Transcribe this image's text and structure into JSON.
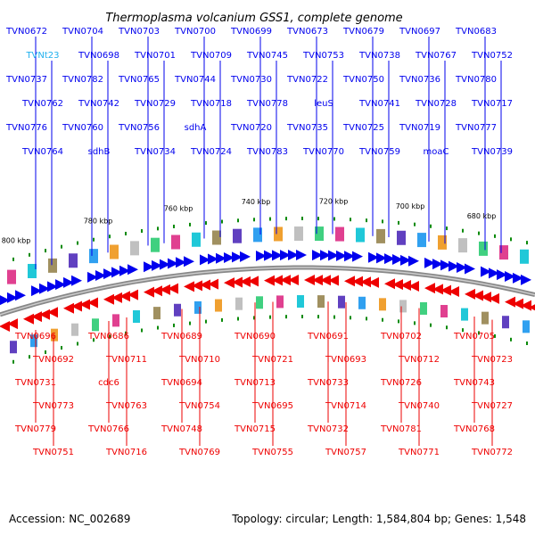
{
  "title": "Thermoplasma volcanium GSS1, complete genome",
  "accession": "Accession: NC_002689",
  "summary": "Topology: circular; Length: 1,584,804 bp; Genes: 1,548",
  "colors": {
    "forward": "#0000ee",
    "reverse": "#ee0000",
    "highlight": "#20b0ee",
    "backbone": "#888888",
    "tick": "#0a8a0a"
  },
  "scale_labels": [
    "680 kbp",
    "700 kbp",
    "720 kbp",
    "740 kbp",
    "760 kbp",
    "780 kbp",
    "800 kbp"
  ],
  "forward_labels": [
    "TVN0672",
    "TVN0704",
    "TVN0703",
    "TVN0700",
    "TVN0699",
    "TVN0673",
    "TVN0679",
    "TVN0697",
    "TVN0683",
    "TVNt23",
    "TVN0698",
    "TVN0701",
    "TVN0709",
    "TVN0745",
    "TVN0753",
    "TVN0738",
    "TVN0767",
    "TVN0752",
    "TVN0737",
    "TVN0782",
    "TVN0765",
    "TVN0744",
    "TVN0730",
    "TVN0722",
    "TVN0750",
    "TVN0736",
    "TVN0780",
    "TVN0762",
    "TVN0742",
    "TVN0729",
    "TVN0718",
    "TVN0778",
    "leuS",
    "TVN0741",
    "TVN0728",
    "TVN0717",
    "TVN0776",
    "TVN0760",
    "TVN0756",
    "sdhA",
    "TVN0720",
    "TVN0735",
    "TVN0725",
    "TVN0719",
    "TVN0777",
    "TVN0764",
    "sdhB",
    "TVN0734",
    "TVN0724",
    "TVN0783",
    "TVN0770",
    "TVN0759",
    "moaC",
    "TVN0739"
  ],
  "reverse_labels": [
    "TVN0696",
    "TVN0686",
    "TVN0689",
    "TVN0690",
    "TVN0691",
    "TVN0702",
    "TVN0705",
    "TVN0692",
    "TVN0711",
    "TVN0710",
    "TVN0721",
    "TVN0693",
    "TVN0712",
    "TVN0723",
    "TVN0731",
    "cdc6",
    "TVN0694",
    "TVN0713",
    "TVN0733",
    "TVN0726",
    "TVN0743",
    "TVN0773",
    "TVN0763",
    "TVN0754",
    "TVN0695",
    "TVN0714",
    "TVN0740",
    "TVN0727",
    "TVN0779",
    "TVN0766",
    "TVN0748",
    "TVN0715",
    "TVN0732",
    "TVN0781",
    "TVN0768",
    "TVN0751",
    "TVN0716",
    "TVN0769",
    "TVN0755",
    "TVN0757",
    "TVN0771",
    "TVN0772"
  ]
}
